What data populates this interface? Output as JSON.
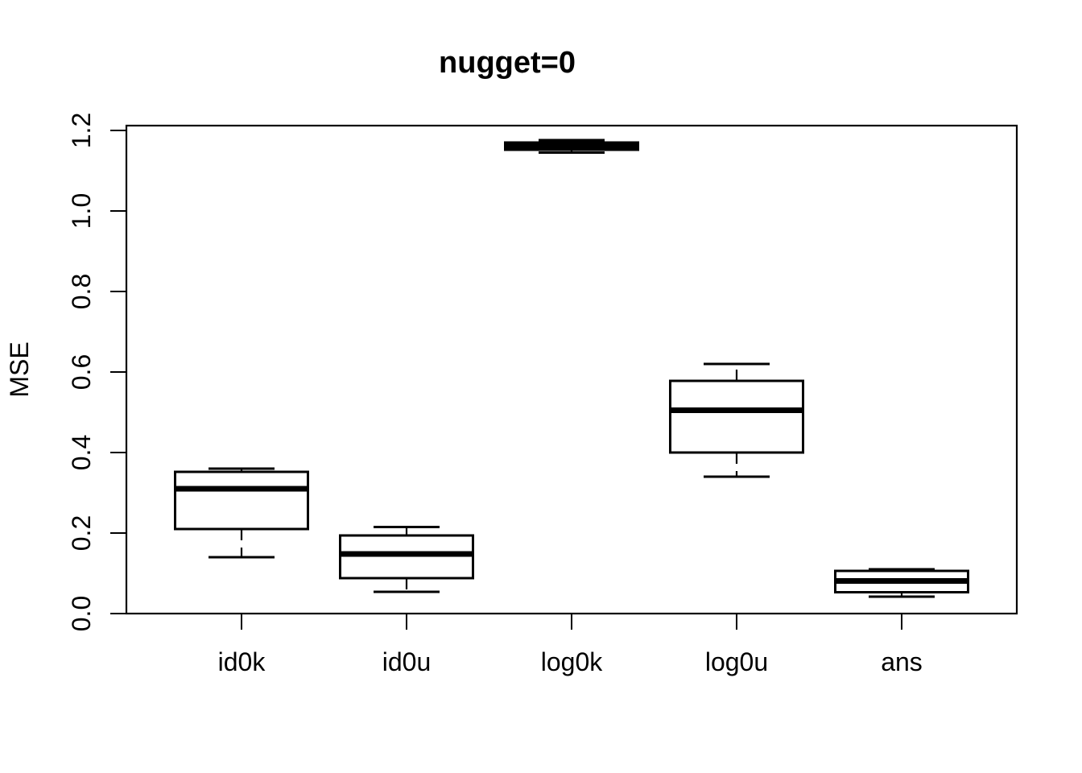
{
  "figure": {
    "background_color": "#ffffff",
    "foreground_color": "#000000"
  },
  "chart_data": {
    "type": "boxplot",
    "title": "nugget=0",
    "xlabel": "",
    "ylabel": "MSE",
    "ylim": [
      0.0,
      1.2
    ],
    "y_ticks": [
      "0.0",
      "0.2",
      "0.4",
      "0.6",
      "0.8",
      "1.0",
      "1.2"
    ],
    "grid": "off",
    "legend": "none",
    "categories": [
      "id0k",
      "id0u",
      "log0k",
      "log0u",
      "ans"
    ],
    "series": [
      {
        "name": "id0k",
        "whisker_low": 0.14,
        "q1": 0.21,
        "median": 0.31,
        "q3": 0.352,
        "whisker_high": 0.36
      },
      {
        "name": "id0u",
        "whisker_low": 0.054,
        "q1": 0.088,
        "median": 0.148,
        "q3": 0.194,
        "whisker_high": 0.215
      },
      {
        "name": "log0k",
        "whisker_low": 1.145,
        "q1": 1.152,
        "median": 1.162,
        "q3": 1.17,
        "whisker_high": 1.176
      },
      {
        "name": "log0u",
        "whisker_low": 0.34,
        "q1": 0.4,
        "median": 0.505,
        "q3": 0.578,
        "whisker_high": 0.62
      },
      {
        "name": "ans",
        "whisker_low": 0.042,
        "q1": 0.053,
        "median": 0.081,
        "q3": 0.106,
        "whisker_high": 0.11
      }
    ]
  }
}
